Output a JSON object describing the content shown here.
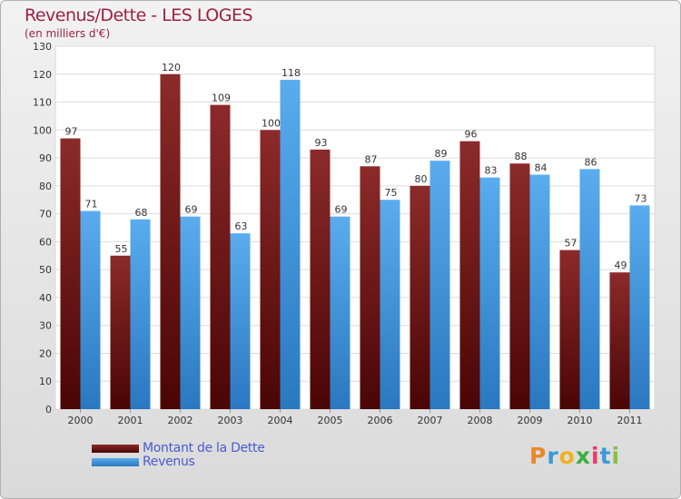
{
  "chart_data": {
    "type": "bar",
    "title": "Revenus/Dette - LES LOGES",
    "subtitle": "(en milliers d'€)",
    "categories": [
      "2000",
      "2001",
      "2002",
      "2003",
      "2004",
      "2005",
      "2006",
      "2007",
      "2008",
      "2009",
      "2010",
      "2011"
    ],
    "series": [
      {
        "name": "Montant de la Dette",
        "color": "#7a1a1a",
        "values": [
          97,
          55,
          120,
          109,
          100,
          93,
          87,
          80,
          96,
          88,
          57,
          49
        ]
      },
      {
        "name": "Revenus",
        "color": "#4a9de0",
        "values": [
          71,
          68,
          69,
          63,
          118,
          69,
          75,
          89,
          83,
          84,
          86,
          73
        ]
      }
    ],
    "ylim": [
      0,
      130
    ],
    "yticks": [
      0,
      10,
      20,
      30,
      40,
      50,
      60,
      70,
      80,
      90,
      100,
      110,
      120,
      130
    ],
    "grid": true,
    "legend": "bottom-left"
  },
  "logo": {
    "letters": [
      "P",
      "r",
      "o",
      "x",
      "i",
      "t",
      "i"
    ],
    "colors": [
      "#e8882a",
      "#3a9ad9",
      "#f0b020",
      "#3ab040",
      "#e83a6a",
      "#3a9ad9",
      "#88c040"
    ]
  }
}
